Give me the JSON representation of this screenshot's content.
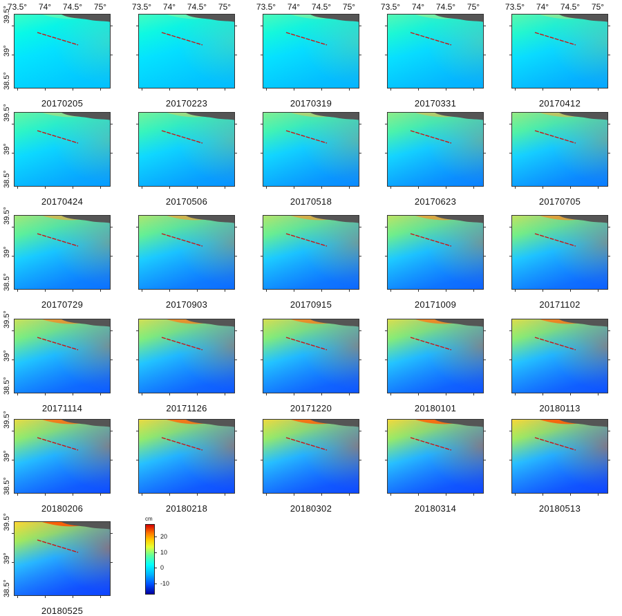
{
  "map_panel": {
    "lon_labels": [
      "73.5°",
      "74°",
      "74.5°",
      "75°"
    ],
    "lat_labels": [
      "39.5°",
      "39°",
      "38.5°"
    ],
    "dates": [
      "20170205",
      "20170223",
      "20170319",
      "20170331",
      "20170412",
      "20170424",
      "20170506",
      "20170518",
      "20170623",
      "20170705",
      "20170729",
      "20170903",
      "20170915",
      "20171009",
      "20171102",
      "20171114",
      "20171126",
      "20171220",
      "20180101",
      "20180113",
      "20180206",
      "20180218",
      "20180302",
      "20180314",
      "20180513",
      "20180525"
    ],
    "deformation_intensity": [
      0.05,
      0.08,
      0.12,
      0.16,
      0.2,
      0.26,
      0.32,
      0.38,
      0.44,
      0.48,
      0.55,
      0.6,
      0.63,
      0.67,
      0.7,
      0.74,
      0.78,
      0.8,
      0.82,
      0.84,
      0.88,
      0.9,
      0.92,
      0.94,
      0.97,
      1.0
    ]
  },
  "colorbar": {
    "unit": "cm",
    "ticks": [
      "20",
      "10",
      "0",
      "-10"
    ],
    "tick_values": [
      20,
      10,
      0,
      -10
    ],
    "range": [
      -15,
      27
    ],
    "colors": [
      "#0000a0",
      "#0050ff",
      "#00b4ff",
      "#00ffff",
      "#66ff99",
      "#e8ff33",
      "#ffcc00",
      "#ff7700",
      "#d40000"
    ]
  },
  "fault_trace_color": "#cc1111",
  "relief_color": "#555555"
}
